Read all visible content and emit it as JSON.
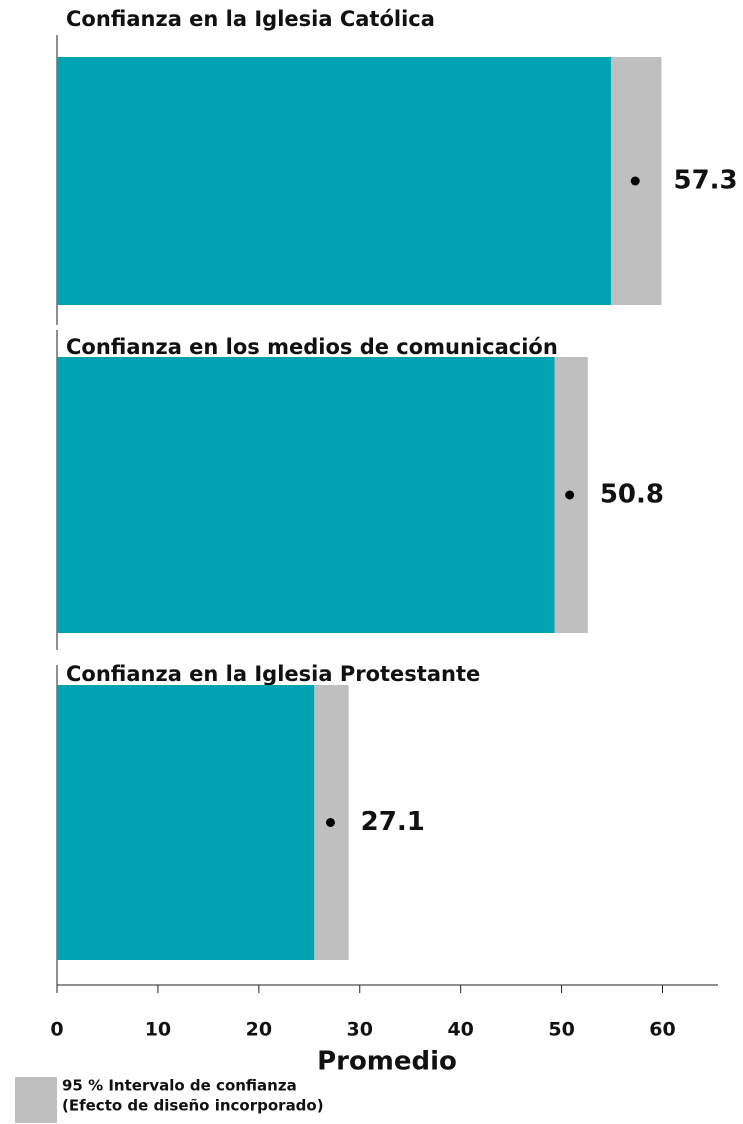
{
  "chart_data": {
    "type": "bar",
    "categories": [
      "Confianza en la Iglesia Católica",
      "Confianza en los medios de comunicación",
      "Confianza en la Iglesia Protestante"
    ],
    "values": [
      57.3,
      50.8,
      27.1
    ],
    "lower": [
      54.9,
      49.3,
      25.5
    ],
    "upper": [
      59.9,
      52.6,
      28.9
    ],
    "color": "#00a3b0",
    "interval_color": "#bfbfbf",
    "xlabel": "Promedio",
    "interval_label": [
      "95 % Intervalo de confianza",
      "(Efecto de diseño incorporado)"
    ],
    "xlim": [
      0,
      65.5
    ],
    "xticks": [
      0,
      10,
      20,
      30,
      40,
      50,
      60
    ]
  }
}
